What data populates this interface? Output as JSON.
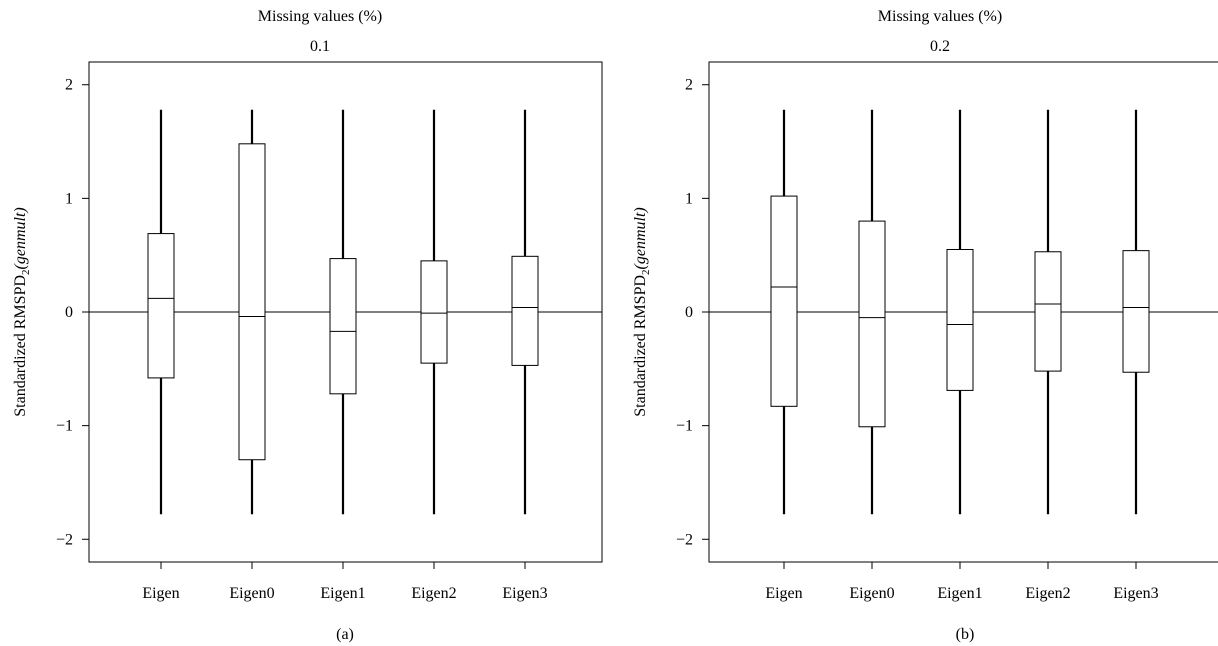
{
  "chart_data": [
    {
      "type": "box",
      "panel_label": "(a)",
      "header": "Missing values (%)",
      "subheader": "0.1",
      "ylabel_main": "Standardized RMSPD",
      "ylabel_sub": "2",
      "ylabel_paren": "(genmult)",
      "ylim": [
        -2.2,
        2.2
      ],
      "yticks": [
        -2,
        -1,
        0,
        1,
        2
      ],
      "ytick_labels": [
        "−2",
        "−1",
        "0",
        "1",
        "2"
      ],
      "reference_line": 0,
      "categories": [
        "Eigen",
        "Eigen0",
        "Eigen1",
        "Eigen2",
        "Eigen3"
      ],
      "boxes": [
        {
          "whisker_low": -1.78,
          "q1": -0.58,
          "median": 0.12,
          "q3": 0.69,
          "whisker_high": 1.78
        },
        {
          "whisker_low": -1.78,
          "q1": -1.3,
          "median": -0.04,
          "q3": 1.48,
          "whisker_high": 1.78
        },
        {
          "whisker_low": -1.78,
          "q1": -0.72,
          "median": -0.17,
          "q3": 0.47,
          "whisker_high": 1.78
        },
        {
          "whisker_low": -1.78,
          "q1": -0.45,
          "median": -0.01,
          "q3": 0.45,
          "whisker_high": 1.78
        },
        {
          "whisker_low": -1.78,
          "q1": -0.47,
          "median": 0.04,
          "q3": 0.49,
          "whisker_high": 1.78
        }
      ]
    },
    {
      "type": "box",
      "panel_label": "(b)",
      "header": "Missing values (%)",
      "subheader": "0.2",
      "ylabel_main": "Standardized RMSPD",
      "ylabel_sub": "2",
      "ylabel_paren": "(genmult)",
      "ylim": [
        -2.2,
        2.2
      ],
      "yticks": [
        -2,
        -1,
        0,
        1,
        2
      ],
      "ytick_labels": [
        "−2",
        "−1",
        "0",
        "1",
        "2"
      ],
      "reference_line": 0,
      "categories": [
        "Eigen",
        "Eigen0",
        "Eigen1",
        "Eigen2",
        "Eigen3"
      ],
      "boxes": [
        {
          "whisker_low": -1.78,
          "q1": -0.83,
          "median": 0.22,
          "q3": 1.02,
          "whisker_high": 1.78
        },
        {
          "whisker_low": -1.78,
          "q1": -1.01,
          "median": -0.05,
          "q3": 0.8,
          "whisker_high": 1.78
        },
        {
          "whisker_low": -1.78,
          "q1": -0.69,
          "median": -0.11,
          "q3": 0.55,
          "whisker_high": 1.78
        },
        {
          "whisker_low": -1.78,
          "q1": -0.52,
          "median": 0.07,
          "q3": 0.53,
          "whisker_high": 1.78
        },
        {
          "whisker_low": -1.78,
          "q1": -0.53,
          "median": 0.04,
          "q3": 0.54,
          "whisker_high": 1.78
        }
      ]
    }
  ]
}
